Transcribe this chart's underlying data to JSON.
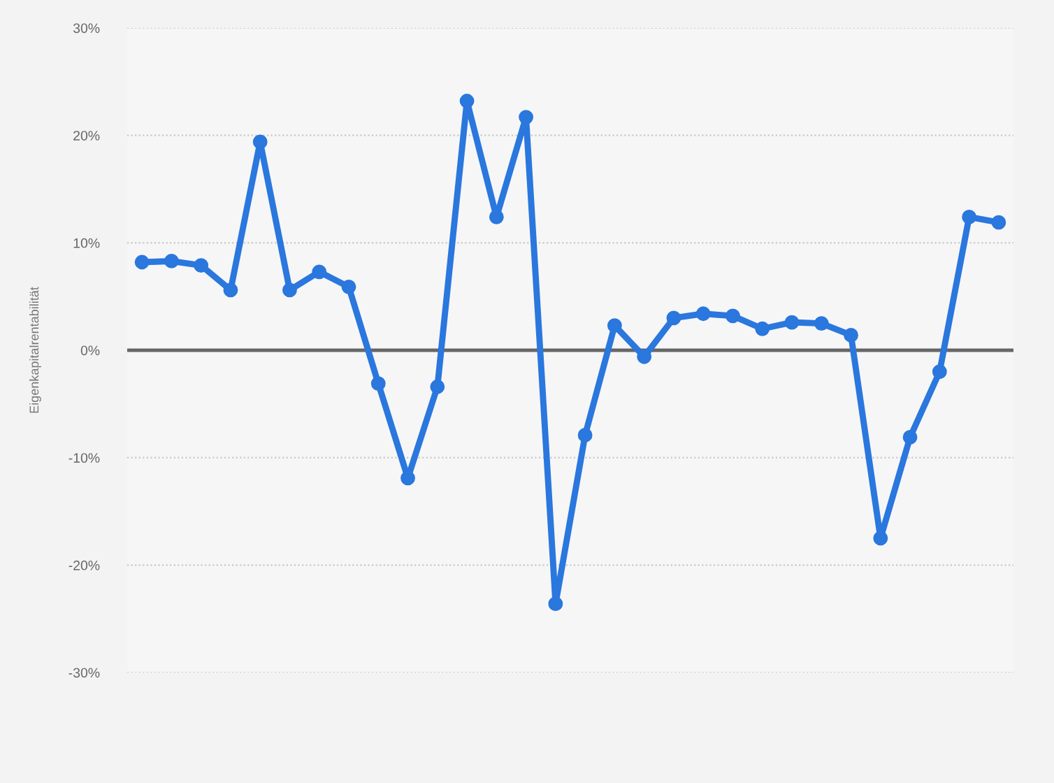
{
  "chart_data": {
    "type": "line",
    "ylabel": "Eigenkapitalrentabilität",
    "categories": [
      null,
      null,
      null,
      null,
      null,
      null,
      null,
      null,
      null,
      null,
      null,
      null,
      null,
      null,
      null,
      null,
      null,
      null,
      null,
      null,
      null,
      null,
      null,
      null,
      null,
      null,
      null,
      null,
      null,
      null
    ],
    "series": [
      {
        "color": "#2a77de",
        "values": [
          8.2,
          8.3,
          7.9,
          5.6,
          19.4,
          5.6,
          7.3,
          5.9,
          -3.1,
          -11.9,
          -3.4,
          23.2,
          12.4,
          21.7,
          -23.6,
          -7.9,
          2.3,
          -0.6,
          3.0,
          3.4,
          3.2,
          2.0,
          2.6,
          2.5,
          1.4,
          -17.5,
          -8.1,
          -2.0,
          12.4,
          11.9
        ]
      }
    ],
    "ylim": [
      -30,
      30
    ],
    "yticks": [
      {
        "value": -30,
        "label": "-30%"
      },
      {
        "value": -20,
        "label": "-20%"
      },
      {
        "value": -10,
        "label": "-10%"
      },
      {
        "value": 0,
        "label": "0%"
      },
      {
        "value": 10,
        "label": "10%"
      },
      {
        "value": 20,
        "label": "20%"
      },
      {
        "value": 30,
        "label": "30%"
      }
    ],
    "grid": "y",
    "marker": "circle",
    "line_style": "solid",
    "tick_labels": "y",
    "ref_lines": [
      {
        "axis": "y",
        "value": 0,
        "color": "#666666"
      }
    ]
  }
}
